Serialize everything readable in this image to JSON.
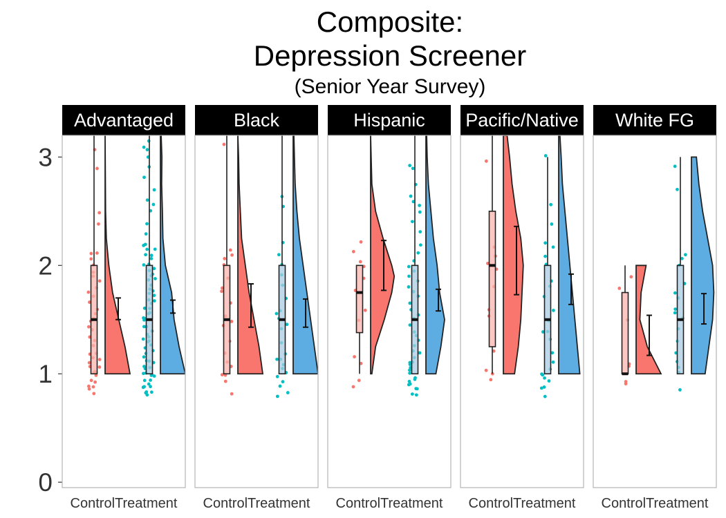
{
  "title": "Composite:",
  "subtitle_line2": "Depression Screener",
  "subtitle_line3": "(Senior Year Survey)",
  "colors": {
    "control": "#F8766D",
    "treatment": "#00BFC4",
    "treatment_violin": "#5DADE2",
    "control_box": "#FBB4AE",
    "treatment_box": "#A9CCE3",
    "strip_bg": "#000000",
    "strip_text": "#FFFFFF",
    "panel_border": "#B3B3B3"
  },
  "chart_data": {
    "type": "raincloud",
    "y_ticks": [
      0,
      1,
      2,
      3
    ],
    "ylim": [
      -0.05,
      3.2
    ],
    "x_categories": [
      "Control",
      "Treatment"
    ],
    "panels": [
      {
        "name": "Advantaged",
        "groups": [
          {
            "group": "Control",
            "box": {
              "q1": 1.0,
              "median": 1.5,
              "q3": 2.0,
              "whisker_low": 1.0,
              "whisker_high": 3.2
            },
            "mean": 1.6,
            "ci": [
              1.5,
              1.7
            ],
            "density": [
              [
                1.0,
                1.0
              ],
              [
                1.25,
                0.8
              ],
              [
                1.5,
                0.55
              ],
              [
                1.75,
                0.3
              ],
              [
                2.0,
                0.15
              ],
              [
                2.25,
                0.05
              ],
              [
                2.5,
                0.02
              ],
              [
                3.2,
                0.0
              ]
            ],
            "points": [
              0.82,
              0.85,
              0.88,
              0.9,
              0.92,
              0.95,
              0.97,
              1.0,
              1.0,
              1.02,
              1.05,
              1.08,
              1.1,
              1.12,
              1.15,
              1.18,
              1.2,
              1.25,
              1.3,
              1.35,
              1.4,
              1.45,
              1.5,
              1.5,
              1.55,
              1.6,
              1.65,
              1.7,
              1.75,
              1.8,
              1.85,
              1.9,
              1.95,
              2.0,
              2.05,
              2.1,
              2.12,
              2.4,
              2.5,
              2.9,
              3.05
            ]
          },
          {
            "group": "Treatment",
            "box": {
              "q1": 1.0,
              "median": 1.5,
              "q3": 2.0,
              "whisker_low": 1.0,
              "whisker_high": 3.2
            },
            "mean": 1.62,
            "ci": [
              1.56,
              1.68
            ],
            "density": [
              [
                1.0,
                1.0
              ],
              [
                1.25,
                0.75
              ],
              [
                1.5,
                0.55
              ],
              [
                1.75,
                0.45
              ],
              [
                2.0,
                0.2
              ],
              [
                2.25,
                0.1
              ],
              [
                2.5,
                0.08
              ],
              [
                2.75,
                0.05
              ],
              [
                3.0,
                0.06
              ],
              [
                3.2,
                0.03
              ]
            ],
            "points": [
              0.8,
              0.82,
              0.84,
              0.85,
              0.87,
              0.88,
              0.9,
              0.92,
              0.94,
              0.95,
              0.97,
              0.99,
              1.0,
              1.0,
              1.02,
              1.03,
              1.05,
              1.07,
              1.09,
              1.1,
              1.12,
              1.15,
              1.18,
              1.2,
              1.22,
              1.25,
              1.28,
              1.3,
              1.33,
              1.35,
              1.38,
              1.4,
              1.43,
              1.45,
              1.48,
              1.5,
              1.52,
              1.55,
              1.58,
              1.6,
              1.62,
              1.65,
              1.68,
              1.7,
              1.72,
              1.75,
              1.78,
              1.8,
              1.83,
              1.85,
              1.88,
              1.9,
              1.93,
              1.95,
              1.98,
              2.0,
              2.03,
              2.05,
              2.08,
              2.1,
              2.13,
              2.15,
              2.18,
              2.2,
              2.3,
              2.4,
              2.5,
              2.55,
              2.6,
              2.7,
              2.8,
              2.9,
              3.0,
              3.05,
              3.1,
              3.15
            ]
          }
        ]
      },
      {
        "name": "Black",
        "groups": [
          {
            "group": "Control",
            "box": {
              "q1": 1.0,
              "median": 1.5,
              "q3": 2.0,
              "whisker_low": 1.0,
              "whisker_high": 3.2
            },
            "mean": 1.63,
            "ci": [
              1.43,
              1.83
            ],
            "density": [
              [
                1.0,
                1.0
              ],
              [
                1.25,
                0.85
              ],
              [
                1.5,
                0.65
              ],
              [
                1.75,
                0.45
              ],
              [
                2.0,
                0.3
              ],
              [
                2.25,
                0.15
              ],
              [
                2.5,
                0.1
              ],
              [
                2.75,
                0.05
              ],
              [
                3.0,
                0.03
              ],
              [
                3.2,
                0.0
              ]
            ],
            "points": [
              0.8,
              0.92,
              0.97,
              1.0,
              1.05,
              1.1,
              1.18,
              1.3,
              1.45,
              1.5,
              1.55,
              1.65,
              1.75,
              1.8,
              1.9,
              2.0,
              2.05,
              2.1,
              2.15,
              3.12
            ]
          },
          {
            "group": "Treatment",
            "box": {
              "q1": 1.0,
              "median": 1.5,
              "q3": 2.0,
              "whisker_low": 1.0,
              "whisker_high": 3.2
            },
            "mean": 1.56,
            "ci": [
              1.43,
              1.69
            ],
            "density": [
              [
                1.0,
                1.0
              ],
              [
                1.25,
                0.85
              ],
              [
                1.5,
                0.7
              ],
              [
                1.75,
                0.55
              ],
              [
                2.0,
                0.4
              ],
              [
                2.25,
                0.25
              ],
              [
                2.5,
                0.15
              ],
              [
                2.75,
                0.08
              ],
              [
                3.0,
                0.05
              ],
              [
                3.2,
                0.03
              ]
            ],
            "points": [
              0.8,
              0.83,
              0.88,
              0.93,
              0.97,
              1.02,
              1.05,
              1.08,
              1.12,
              1.15,
              1.2,
              1.3,
              1.4,
              1.45,
              1.5,
              1.55,
              1.6,
              1.7,
              1.8,
              1.9,
              2.0,
              2.1,
              2.2,
              2.55,
              2.62
            ]
          }
        ]
      },
      {
        "name": "Hispanic",
        "groups": [
          {
            "group": "Control",
            "box": {
              "q1": 1.38,
              "median": 1.75,
              "q3": 2.0,
              "whisker_low": 1.0,
              "whisker_high": 2.0
            },
            "mean": 2.0,
            "ci": [
              1.77,
              2.23
            ],
            "density": [
              [
                1.0,
                0.05
              ],
              [
                1.25,
                0.2
              ],
              [
                1.5,
                0.55
              ],
              [
                1.75,
                0.85
              ],
              [
                1.9,
                0.95
              ],
              [
                2.0,
                0.85
              ],
              [
                2.25,
                0.5
              ],
              [
                2.5,
                0.2
              ],
              [
                2.75,
                0.05
              ],
              [
                3.2,
                0.0
              ]
            ],
            "points": [
              0.88,
              0.92,
              1.08,
              1.15,
              1.5,
              1.6,
              1.75,
              1.9,
              2.0,
              2.05,
              2.12,
              2.2
            ]
          },
          {
            "group": "Treatment",
            "box": {
              "q1": 1.0,
              "median": 1.5,
              "q3": 2.0,
              "whisker_low": 1.0,
              "whisker_high": 3.2
            },
            "mean": 1.68,
            "ci": [
              1.58,
              1.78
            ],
            "density": [
              [
                1.0,
                0.4
              ],
              [
                1.25,
                0.6
              ],
              [
                1.5,
                0.75
              ],
              [
                1.75,
                0.55
              ],
              [
                2.0,
                0.45
              ],
              [
                2.25,
                0.3
              ],
              [
                2.5,
                0.2
              ],
              [
                2.75,
                0.1
              ],
              [
                3.0,
                0.05
              ],
              [
                3.2,
                0.03
              ]
            ],
            "points": [
              0.8,
              0.83,
              0.85,
              0.87,
              0.89,
              0.9,
              0.92,
              0.95,
              0.98,
              1.0,
              1.02,
              1.05,
              1.08,
              1.1,
              1.12,
              1.15,
              1.2,
              1.22,
              1.25,
              1.3,
              1.35,
              1.4,
              1.45,
              1.5,
              1.55,
              1.6,
              1.65,
              1.7,
              1.75,
              1.8,
              1.85,
              1.9,
              1.95,
              2.0,
              2.05,
              2.1,
              2.2,
              2.3,
              2.4,
              2.5,
              2.55,
              2.6,
              2.65,
              2.75,
              2.9,
              2.92
            ]
          }
        ]
      },
      {
        "name": "Pacific/Native",
        "groups": [
          {
            "group": "Control",
            "box": {
              "q1": 1.25,
              "median": 2.0,
              "q3": 2.5,
              "whisker_low": 1.0,
              "whisker_high": 3.2
            },
            "mean": 2.05,
            "ci": [
              1.73,
              2.36
            ],
            "density": [
              [
                1.0,
                0.45
              ],
              [
                1.25,
                0.6
              ],
              [
                1.5,
                0.7
              ],
              [
                1.75,
                0.75
              ],
              [
                2.0,
                0.8
              ],
              [
                2.25,
                0.7
              ],
              [
                2.5,
                0.5
              ],
              [
                2.75,
                0.35
              ],
              [
                3.0,
                0.25
              ],
              [
                3.2,
                0.15
              ]
            ],
            "points": [
              0.93,
              0.99,
              1.05,
              1.2,
              1.55,
              1.6,
              1.8,
              1.95,
              2.0,
              2.1,
              2.15,
              2.95
            ]
          },
          {
            "group": "Treatment",
            "box": {
              "q1": 1.0,
              "median": 1.5,
              "q3": 2.0,
              "whisker_low": 1.0,
              "whisker_high": 3.0
            },
            "mean": 1.78,
            "ci": [
              1.64,
              1.92
            ],
            "density": [
              [
                1.0,
                0.85
              ],
              [
                1.25,
                0.75
              ],
              [
                1.5,
                0.65
              ],
              [
                1.75,
                0.55
              ],
              [
                2.0,
                0.45
              ],
              [
                2.25,
                0.35
              ],
              [
                2.5,
                0.25
              ],
              [
                2.75,
                0.15
              ],
              [
                3.0,
                0.1
              ],
              [
                3.2,
                0.05
              ]
            ],
            "points": [
              0.81,
              0.85,
              0.88,
              0.92,
              0.96,
              0.99,
              1.0,
              1.05,
              1.1,
              1.2,
              1.3,
              1.38,
              1.4,
              1.5,
              1.6,
              1.7,
              1.8,
              1.85,
              2.0,
              2.1,
              2.15,
              2.2,
              2.4,
              2.55,
              3.02
            ]
          }
        ]
      },
      {
        "name": "White FG",
        "groups": [
          {
            "group": "Control",
            "box": {
              "q1": 1.0,
              "median": 1.0,
              "q3": 1.75,
              "whisker_low": 1.0,
              "whisker_high": 2.0
            },
            "mean": 1.35,
            "ci": [
              1.17,
              1.54
            ],
            "density": [
              [
                1.0,
                1.0
              ],
              [
                1.25,
                0.45
              ],
              [
                1.5,
                0.15
              ],
              [
                1.75,
                0.2
              ],
              [
                2.0,
                0.4
              ]
            ],
            "points": [
              0.92,
              0.92,
              1.08,
              1.1,
              1.5,
              1.8,
              1.88
            ]
          },
          {
            "group": "Treatment",
            "box": {
              "q1": 1.0,
              "median": 1.5,
              "q3": 2.0,
              "whisker_low": 1.0,
              "whisker_high": 3.0
            },
            "mean": 1.6,
            "ci": [
              1.46,
              1.74
            ],
            "density": [
              [
                1.0,
                0.55
              ],
              [
                1.25,
                0.7
              ],
              [
                1.5,
                0.85
              ],
              [
                1.75,
                0.9
              ],
              [
                2.0,
                0.85
              ],
              [
                2.25,
                0.65
              ],
              [
                2.5,
                0.45
              ],
              [
                2.75,
                0.3
              ],
              [
                3.0,
                0.2
              ]
            ],
            "points": [
              0.85,
              1.0,
              1.05,
              1.1,
              1.18,
              1.3,
              1.4,
              1.5,
              1.55,
              1.6,
              1.7,
              1.75,
              1.85,
              2.0,
              2.05,
              2.1,
              2.7,
              2.9
            ]
          }
        ]
      }
    ]
  }
}
